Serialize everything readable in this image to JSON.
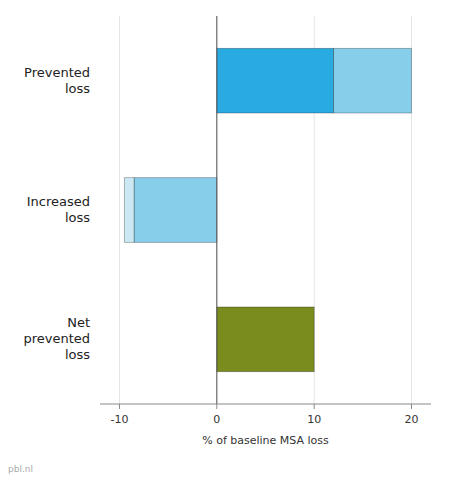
{
  "chart_data": {
    "type": "bar",
    "orientation": "horizontal",
    "stacked": true,
    "grid": true,
    "categories": [
      "Net\nprevented\nloss",
      "Increased\nloss",
      "Prevented\nloss"
    ],
    "series": [
      {
        "values": [
          10.0,
          -8.5,
          12.0
        ],
        "colors": [
          "#7a8c1e",
          "#87CEEB",
          "#29ABE2"
        ]
      },
      {
        "values": [
          null,
          -1.0,
          8.0
        ],
        "colors": [
          null,
          "#cce8f5",
          "#87CEEB"
        ]
      }
    ],
    "xlim": [
      -12,
      22
    ],
    "xticks": [
      -10,
      0,
      10,
      20
    ],
    "xlabel": "% of baseline MSA loss",
    "annotations": [
      "pbl.nl"
    ]
  }
}
